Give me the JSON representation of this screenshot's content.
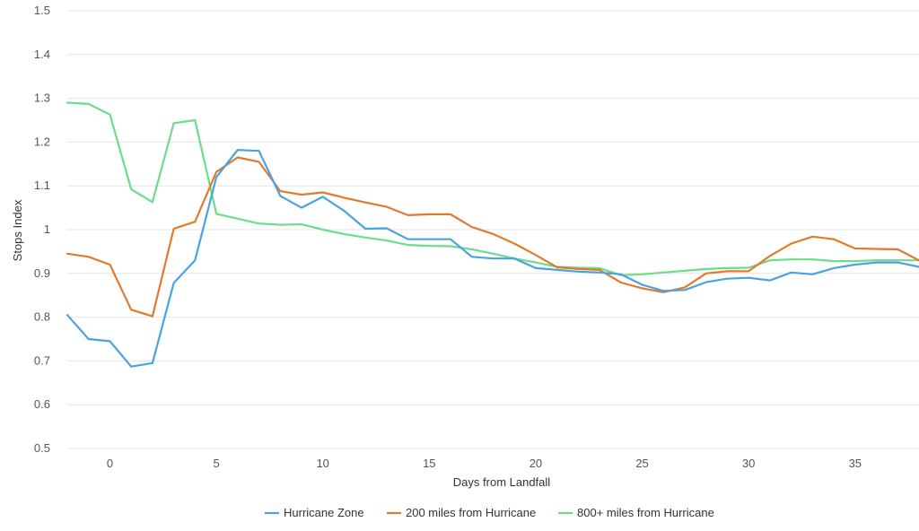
{
  "chart_data": {
    "type": "line",
    "title": "",
    "xlabel": "Days from Landfall",
    "ylabel": "Stops Index",
    "xlim": [
      -2,
      38
    ],
    "ylim": [
      0.5,
      1.5
    ],
    "x_ticks": [
      0,
      5,
      10,
      15,
      20,
      25,
      30,
      35
    ],
    "y_ticks": [
      "0.5",
      "0.6",
      "0.7",
      "0.8",
      "0.9",
      "1",
      "1.1",
      "1.2",
      "1.3",
      "1.4",
      "1.5"
    ],
    "grid": "horizontal",
    "legend_position": "bottom",
    "x": [
      -2,
      -1,
      0,
      1,
      2,
      3,
      4,
      5,
      6,
      7,
      8,
      9,
      10,
      11,
      12,
      13,
      14,
      15,
      16,
      17,
      18,
      19,
      20,
      21,
      22,
      23,
      24,
      25,
      26,
      27,
      28,
      29,
      30,
      31,
      32,
      33,
      34,
      35,
      36,
      37,
      38
    ],
    "series": [
      {
        "name": "Hurricane Zone",
        "color": "#4aa3df",
        "values": [
          0.805,
          0.75,
          0.745,
          0.687,
          0.695,
          0.878,
          0.93,
          1.12,
          1.182,
          1.18,
          1.077,
          1.05,
          1.075,
          1.043,
          1.002,
          1.003,
          0.978,
          0.978,
          0.978,
          0.938,
          0.934,
          0.934,
          0.912,
          0.908,
          0.904,
          0.902,
          0.898,
          0.874,
          0.86,
          0.862,
          0.88,
          0.888,
          0.89,
          0.884,
          0.902,
          0.898,
          0.912,
          0.92,
          0.925,
          0.925,
          0.915
        ]
      },
      {
        "name": "200 miles from Hurricane",
        "color": "#e07b2e",
        "values": [
          0.945,
          0.938,
          0.92,
          0.817,
          0.802,
          1.002,
          1.018,
          1.132,
          1.165,
          1.155,
          1.088,
          1.08,
          1.085,
          1.073,
          1.062,
          1.052,
          1.033,
          1.035,
          1.035,
          1.006,
          0.99,
          0.968,
          0.942,
          0.914,
          0.91,
          0.908,
          0.879,
          0.866,
          0.857,
          0.868,
          0.9,
          0.905,
          0.905,
          0.94,
          0.968,
          0.984,
          0.978,
          0.957,
          0.956,
          0.955,
          0.93
        ]
      },
      {
        "name": "800+ miles from Hurricane",
        "color": "#6ddc8b",
        "values": [
          1.29,
          1.287,
          1.263,
          1.092,
          1.063,
          1.243,
          1.25,
          1.036,
          1.025,
          1.014,
          1.011,
          1.012,
          1.0,
          0.99,
          0.982,
          0.975,
          0.965,
          0.963,
          0.962,
          0.955,
          0.945,
          0.934,
          0.925,
          0.915,
          0.913,
          0.912,
          0.896,
          0.898,
          0.902,
          0.906,
          0.91,
          0.912,
          0.913,
          0.93,
          0.932,
          0.932,
          0.928,
          0.928,
          0.93,
          0.93,
          0.93
        ]
      }
    ]
  }
}
